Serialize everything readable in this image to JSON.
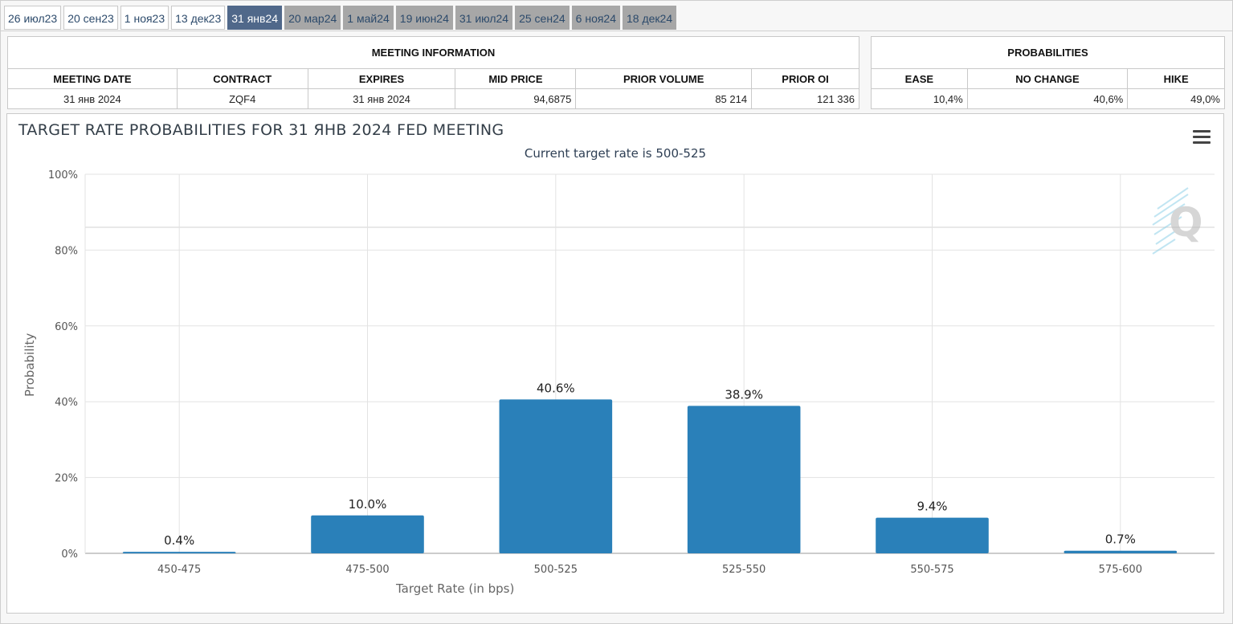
{
  "tabs": [
    {
      "label": "26 июл23",
      "state": "past"
    },
    {
      "label": "20 сен23",
      "state": "past"
    },
    {
      "label": "1 ноя23",
      "state": "past"
    },
    {
      "label": "13 дек23",
      "state": "past"
    },
    {
      "label": "31 янв24",
      "state": "active"
    },
    {
      "label": "20 мар24",
      "state": "future"
    },
    {
      "label": "1 май24",
      "state": "future"
    },
    {
      "label": "19 июн24",
      "state": "future"
    },
    {
      "label": "31 июл24",
      "state": "future"
    },
    {
      "label": "25 сен24",
      "state": "future"
    },
    {
      "label": "6 ноя24",
      "state": "future"
    },
    {
      "label": "18 дек24",
      "state": "future"
    }
  ],
  "meeting_info": {
    "title": "MEETING INFORMATION",
    "headers": [
      "MEETING DATE",
      "CONTRACT",
      "EXPIRES",
      "MID PRICE",
      "PRIOR VOLUME",
      "PRIOR OI"
    ],
    "values": [
      "31 янв 2024",
      "ZQF4",
      "31 янв 2024",
      "94,6875",
      "85 214",
      "121 336"
    ]
  },
  "probabilities": {
    "title": "PROBABILITIES",
    "headers": [
      "EASE",
      "NO CHANGE",
      "HIKE"
    ],
    "values": [
      "10,4%",
      "40,6%",
      "49,0%"
    ]
  },
  "colors": {
    "bar": "#2a80b9",
    "active_tab": "#50688a",
    "future_tab": "#a7a7a7",
    "tab_text": "#2c4a6b"
  },
  "chart_data": {
    "type": "bar",
    "title": "TARGET RATE PROBABILITIES FOR 31 ЯНВ 2024 FED MEETING",
    "subtitle": "Current target rate is 500-525",
    "xlabel": "Target Rate (in bps)",
    "ylabel": "Probability",
    "categories": [
      "450-475",
      "475-500",
      "500-525",
      "525-550",
      "550-575",
      "575-600"
    ],
    "values": [
      0.4,
      10.0,
      40.6,
      38.9,
      9.4,
      0.7
    ],
    "data_labels": [
      "0.4%",
      "10.0%",
      "40.6%",
      "38.9%",
      "9.4%",
      "0.7%"
    ],
    "y_ticks": [
      "0%",
      "20%",
      "40%",
      "60%",
      "80%",
      "100%"
    ],
    "ylim": [
      0,
      100
    ],
    "grid": true,
    "menu_icon": "hamburger-menu-icon",
    "watermark_icon": "q-logo-icon"
  }
}
